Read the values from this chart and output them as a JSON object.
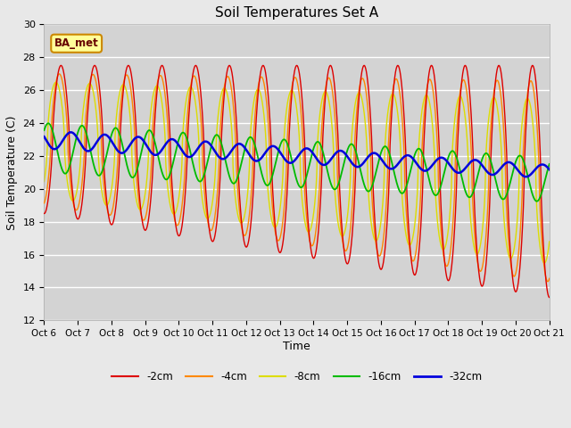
{
  "title": "Soil Temperatures Set A",
  "xlabel": "Time",
  "ylabel": "Soil Temperature (C)",
  "ylim": [
    12,
    30
  ],
  "bg_color": "#e8e8e8",
  "plot_bg_color": "#d3d3d3",
  "annotation_text": "BA_met",
  "annotation_bg": "#ffff99",
  "annotation_border": "#cc8800",
  "annotation_text_color": "#660000",
  "series_colors": {
    "-2cm": "#dd0000",
    "-4cm": "#ff8800",
    "-8cm": "#dddd00",
    "-16cm": "#00bb00",
    "-32cm": "#0000dd"
  },
  "xtick_labels": [
    "Oct 6",
    "Oct 7",
    "Oct 8",
    "Oct 9",
    "Oct 10",
    "Oct 11",
    "Oct 12",
    "Oct 13",
    "Oct 14",
    "Oct 15",
    "Oct 16",
    "Oct 17",
    "Oct 18",
    "Oct 19",
    "Oct 20",
    "Oct 21"
  ],
  "ytick_labels": [
    12,
    14,
    16,
    18,
    20,
    22,
    24,
    26,
    28,
    30
  ],
  "n_days": 15
}
